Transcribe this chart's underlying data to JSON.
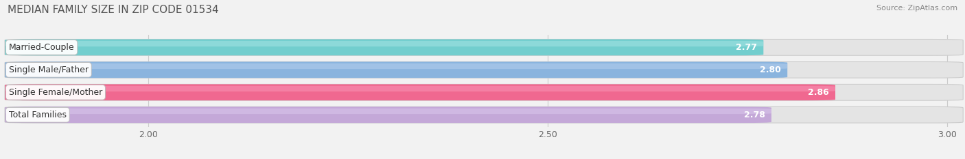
{
  "title": "MEDIAN FAMILY SIZE IN ZIP CODE 01534",
  "source": "Source: ZipAtlas.com",
  "categories": [
    "Married-Couple",
    "Single Male/Father",
    "Single Female/Mother",
    "Total Families"
  ],
  "values": [
    2.77,
    2.8,
    2.86,
    2.78
  ],
  "bar_colors": [
    "#72cece",
    "#8ab4de",
    "#f06890",
    "#c4a8d8"
  ],
  "bar_light_colors": [
    "#a8e4e4",
    "#b8d0ee",
    "#f898b8",
    "#dac8ec"
  ],
  "xlim_data": [
    2.0,
    3.0
  ],
  "xticks": [
    2.0,
    2.5,
    3.0
  ],
  "xtick_labels": [
    "2.00",
    "2.50",
    "3.00"
  ],
  "label_color": "#333333",
  "value_color": "#ffffff",
  "background_color": "#f2f2f2",
  "bar_bg_color": "#e4e4e4",
  "title_fontsize": 11,
  "source_fontsize": 8,
  "label_fontsize": 9,
  "value_fontsize": 9,
  "tick_fontsize": 9
}
